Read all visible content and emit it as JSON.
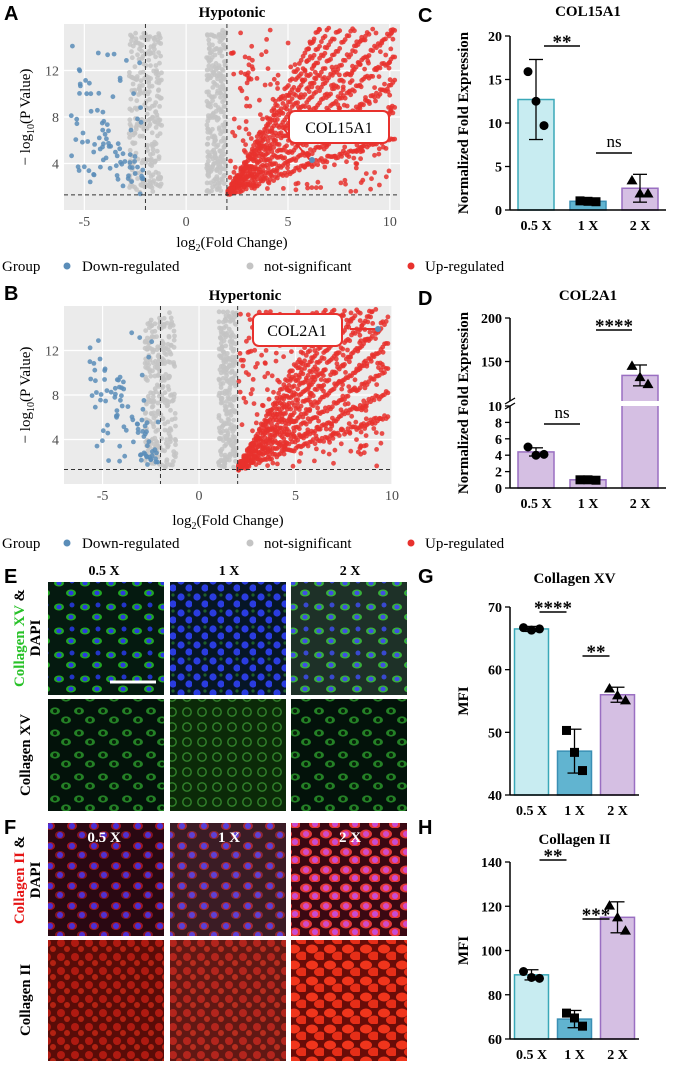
{
  "panels": {
    "A": "A",
    "B": "B",
    "C": "C",
    "D": "D",
    "E": "E",
    "F": "F",
    "G": "G",
    "H": "H"
  },
  "colors": {
    "up": "#e8312d",
    "down": "#5a8db8",
    "ns": "#c4c4c4",
    "bar_light_blue": "#c8ecf1",
    "bar_blue": "#61b4d0",
    "bar_purple": "#d5bfe3",
    "green": "#27c127",
    "red": "#e51515",
    "blue": "#1414d8"
  },
  "legend": {
    "title": "Group",
    "items": [
      "Down-regulated",
      "not-significant",
      "Up-regulated"
    ]
  },
  "volcano": [
    {
      "title": "Hypotonic",
      "xlabel": "log2(Fold Change)",
      "ylabel": "− log10(P Value)",
      "xticks": [
        -5,
        0,
        5,
        10
      ],
      "yticks": [
        4,
        8,
        12
      ],
      "xlim": [
        -6,
        10.5
      ],
      "ylim": [
        0,
        16
      ],
      "fc_cutoffs": [
        -2,
        2
      ],
      "p_line": 1.3,
      "gene": "COL15A1"
    },
    {
      "title": "Hypertonic",
      "xlabel": "log2(Fold Change)",
      "ylabel": "− log10(P Value)",
      "xticks": [
        -5,
        0,
        5,
        10
      ],
      "yticks": [
        4,
        8,
        12
      ],
      "xlim": [
        -7,
        10
      ],
      "ylim": [
        0,
        16
      ],
      "fc_cutoffs": [
        -2,
        2
      ],
      "p_line": 1.3,
      "gene": "COL2A1"
    }
  ],
  "chart_data": [
    {
      "type": "bar",
      "title": "COL15A1",
      "ylabel": "Normalized Fold Expression",
      "categories": [
        "0.5 X",
        "1 X",
        "2 X"
      ],
      "values": [
        12.7,
        1.0,
        2.5
      ],
      "errors": [
        4.6,
        0.15,
        1.6
      ],
      "ylim": [
        0,
        20
      ],
      "yticks": [
        0,
        5,
        10,
        15,
        20
      ],
      "points": [
        [
          15.9,
          12.5,
          9.7
        ],
        [
          1.05,
          1.0,
          0.95
        ],
        [
          3.4,
          1.9,
          1.9
        ]
      ],
      "comparisons": [
        {
          "from": "0.5 X",
          "to": "1 X",
          "label": "**"
        },
        {
          "from": "1 X",
          "to": "2 X",
          "label": "ns"
        }
      ]
    },
    {
      "type": "bar",
      "title": "COL2A1",
      "ylabel": "Normalized Fold Expression",
      "categories": [
        "0.5 X",
        "1 X",
        "2 X"
      ],
      "values": [
        4.4,
        1.0,
        134
      ],
      "errors": [
        0.5,
        0.1,
        12
      ],
      "ylim": [
        0,
        200
      ],
      "axis_break": [
        10,
        100
      ],
      "yticks": [
        0,
        2,
        4,
        6,
        8,
        10,
        150,
        200
      ],
      "points": [
        [
          5.0,
          4.0,
          4.1
        ],
        [
          1.0,
          1.0,
          0.95
        ],
        [
          145,
          132,
          124
        ]
      ],
      "comparisons": [
        {
          "from": "0.5 X",
          "to": "1 X",
          "label": "ns"
        },
        {
          "from": "1 X",
          "to": "2 X",
          "label": "****"
        }
      ]
    },
    {
      "type": "bar",
      "title": "Collagen XV",
      "ylabel": "MFI",
      "categories": [
        "0.5 X",
        "1 X",
        "2 X"
      ],
      "values": [
        66.5,
        47,
        56
      ],
      "errors": [
        0.4,
        3.5,
        1.2
      ],
      "ylim": [
        40,
        70
      ],
      "yticks": [
        40,
        50,
        60,
        70
      ],
      "points": [
        [
          66.7,
          66.3,
          66.5
        ],
        [
          50.3,
          46.8,
          43.9
        ],
        [
          57,
          55.9,
          55.1
        ]
      ],
      "comparisons": [
        {
          "from": "0.5 X",
          "to": "1 X",
          "label": "****"
        },
        {
          "from": "1 X",
          "to": "2 X",
          "label": "**"
        }
      ]
    },
    {
      "type": "bar",
      "title": "Collagen II",
      "ylabel": "MFI",
      "categories": [
        "0.5 X",
        "1 X",
        "2 X"
      ],
      "values": [
        89,
        69,
        115
      ],
      "errors": [
        2.3,
        3.9,
        7
      ],
      "ylim": [
        60,
        140
      ],
      "yticks": [
        60,
        80,
        100,
        120,
        140
      ],
      "points": [
        [
          90.5,
          87.8,
          87.4
        ],
        [
          71.7,
          69.5,
          65.8
        ],
        [
          120.3,
          115,
          109
        ]
      ],
      "comparisons": [
        {
          "from": "0.5 X",
          "to": "1 X",
          "label": "**"
        },
        {
          "from": "1 X",
          "to": "2 X",
          "label": "***"
        }
      ]
    }
  ],
  "micro": {
    "conditions": [
      "0.5 X",
      "1 X",
      "2 X"
    ],
    "E": {
      "row1_a": "Collagen XV",
      "row1_b": "&",
      "row1_c": "DAPI",
      "row2": "Collagen XV"
    },
    "F": {
      "row1_a": "Collagen II",
      "row1_b": "&",
      "row1_c": "DAPI",
      "row2": "Collagen II"
    }
  }
}
